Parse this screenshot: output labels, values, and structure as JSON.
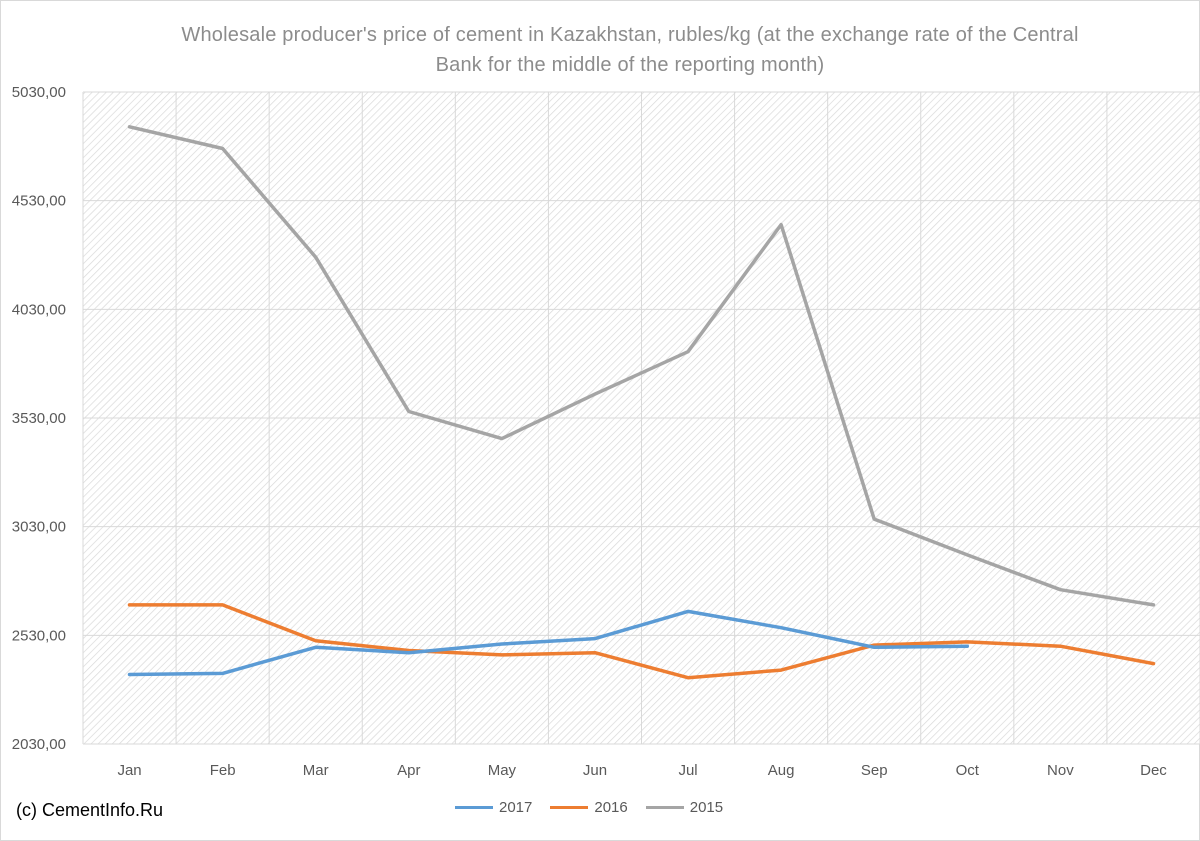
{
  "chart_data": {
    "type": "line",
    "title": "Wholesale producer's price of cement in Kazakhstan, rubles/kg (at the exchange rate of the Central Bank for the middle of the reporting month)",
    "title_lines": [
      "Wholesale producer's price of cement in Kazakhstan, rubles/kg (at the exchange rate of the Central",
      "Bank for the middle of the reporting month)"
    ],
    "xlabel": "",
    "ylabel": "",
    "categories": [
      "Jan",
      "Feb",
      "Mar",
      "Apr",
      "May",
      "Jun",
      "Jul",
      "Aug",
      "Sep",
      "Oct",
      "Nov",
      "Dec"
    ],
    "y_ticks": [
      "2030,00",
      "2530,00",
      "3030,00",
      "3530,00",
      "4030,00",
      "4530,00",
      "5030,00"
    ],
    "ylim": [
      2030,
      5030
    ],
    "grid": true,
    "background": "diagonal hatch",
    "legend_position": "bottom",
    "series": [
      {
        "name": "2017",
        "color": "#5b9bd5",
        "values": [
          2350,
          2355,
          2475,
          2450,
          2490,
          2515,
          2640,
          2565,
          2475,
          2480,
          null,
          null
        ]
      },
      {
        "name": "2016",
        "color": "#ed7d31",
        "values": [
          2670,
          2670,
          2505,
          2460,
          2440,
          2450,
          2335,
          2370,
          2485,
          2500,
          2480,
          2400
        ]
      },
      {
        "name": "2015",
        "color": "#a5a5a5",
        "values": [
          4870,
          4770,
          4270,
          3560,
          3435,
          3640,
          3835,
          4420,
          3065,
          2900,
          2740,
          2670
        ]
      }
    ]
  },
  "copyright": "(c) CementInfo.Ru"
}
